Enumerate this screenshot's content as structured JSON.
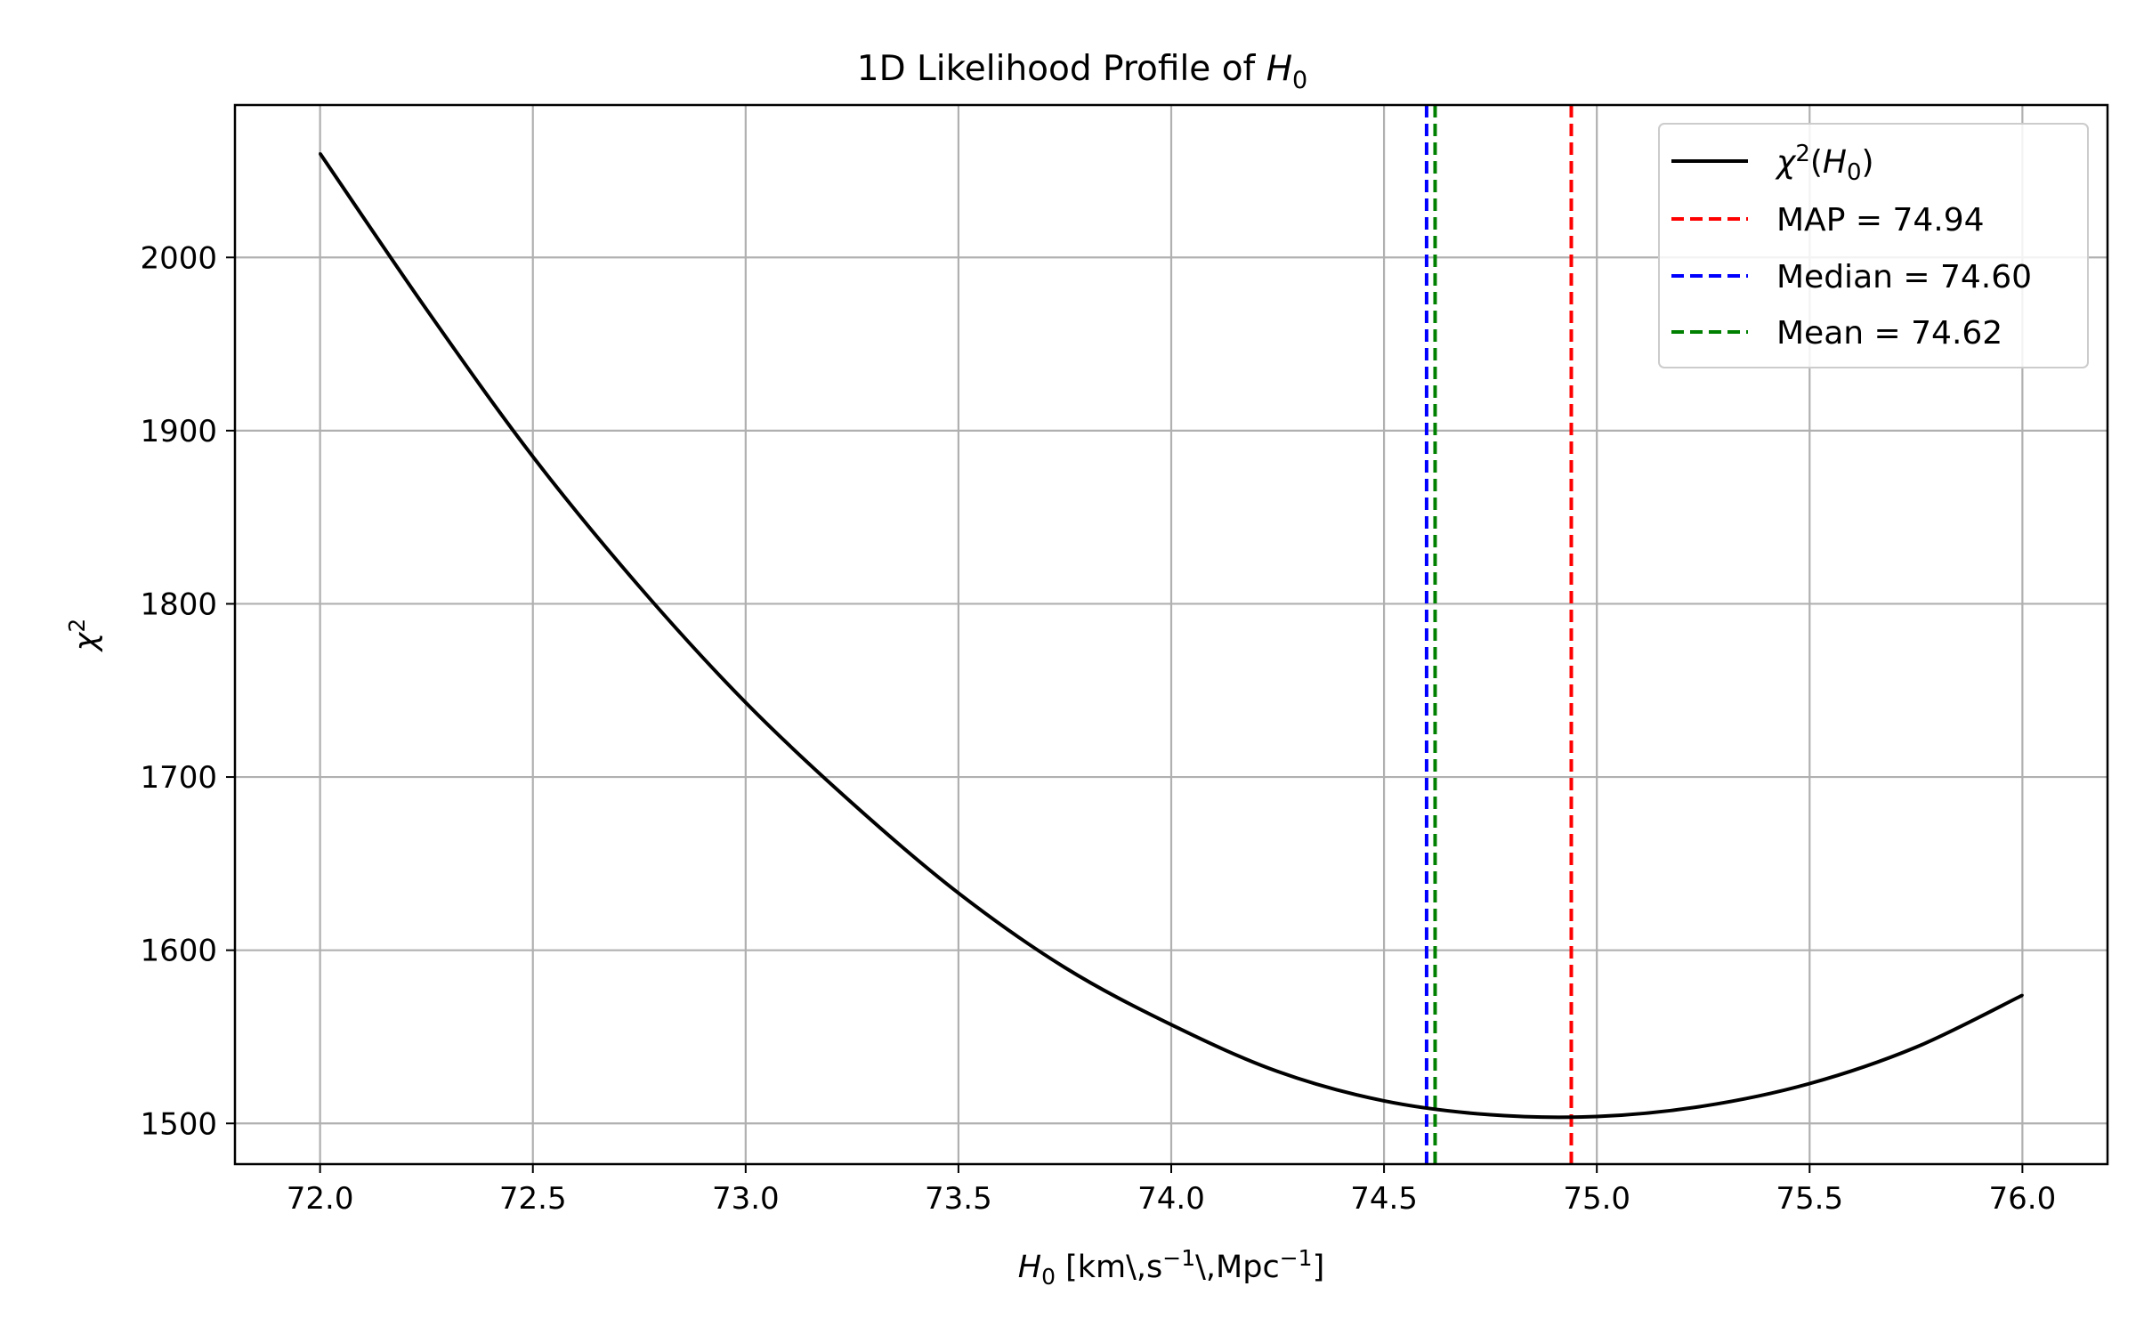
{
  "chart_data": {
    "type": "line",
    "title": "1D Likelihood Profile of H₀",
    "title_parts": {
      "prefix": "1D Likelihood Profile of ",
      "symbol": "H",
      "subscript": "0"
    },
    "xlabel": "H₀ [km\\,s⁻¹\\,Mpc⁻¹]",
    "xlabel_parts": {
      "symbol": "H",
      "subscript": "0",
      "unit_a": " [km\\,s",
      "exp_a": "−1",
      "unit_b": "\\,Mpc",
      "exp_b": "−1",
      "close": "]"
    },
    "ylabel": "χ²",
    "ylabel_parts": {
      "symbol": "χ",
      "superscript": "2"
    },
    "xlim": [
      71.8,
      76.2
    ],
    "ylim": [
      1476.5,
      2088
    ],
    "x_ticks": [
      72.0,
      72.5,
      73.0,
      73.5,
      74.0,
      74.5,
      75.0,
      75.5,
      76.0
    ],
    "x_tick_labels": [
      "72.0",
      "72.5",
      "73.0",
      "73.5",
      "74.0",
      "74.5",
      "75.0",
      "75.5",
      "76.0"
    ],
    "y_ticks": [
      1500,
      1600,
      1700,
      1800,
      1900,
      2000
    ],
    "y_tick_labels": [
      "1500",
      "1600",
      "1700",
      "1800",
      "1900",
      "2000"
    ],
    "grid": true,
    "legend_position": "top-right",
    "series": [
      {
        "name": "χ²(H₀)",
        "color": "#000000",
        "style": "solid",
        "x": [
          72.0,
          72.25,
          72.5,
          72.75,
          73.0,
          73.25,
          73.5,
          73.75,
          74.0,
          74.25,
          74.5,
          74.75,
          75.0,
          75.25,
          75.5,
          75.75,
          76.0
        ],
        "values": [
          2060,
          1970,
          1885,
          1810,
          1743,
          1685,
          1633,
          1590,
          1557,
          1530,
          1513,
          1505,
          1504,
          1510,
          1523,
          1544,
          1574
        ]
      }
    ],
    "vlines": [
      {
        "name": "MAP = 74.94",
        "x": 74.94,
        "color": "#ff0000",
        "style": "dashed"
      },
      {
        "name": "Median = 74.60",
        "x": 74.6,
        "color": "#0000ff",
        "style": "dashed"
      },
      {
        "name": "Mean = 74.62",
        "x": 74.62,
        "color": "#008000",
        "style": "dashed"
      }
    ]
  }
}
